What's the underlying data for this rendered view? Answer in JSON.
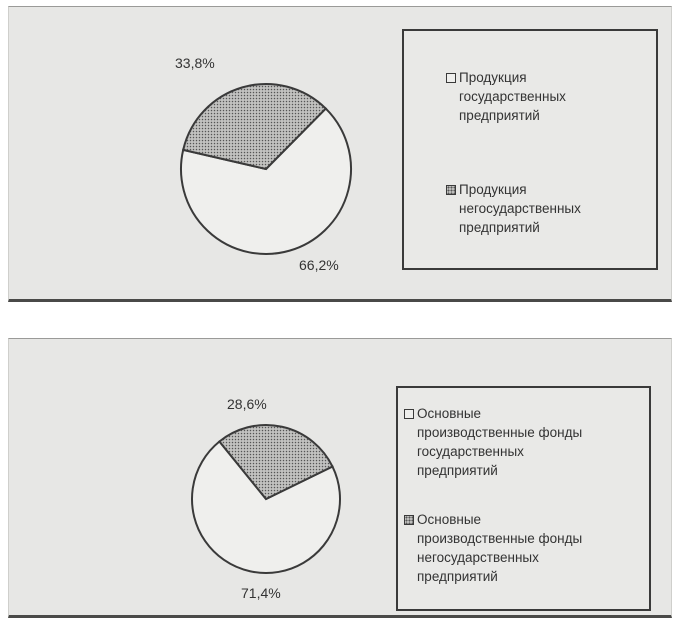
{
  "chart_data": [
    {
      "type": "pie",
      "slices": [
        {
          "label": "Продукция государственных предприятий",
          "value": 66.2,
          "value_label": "66,2%"
        },
        {
          "label": "Продукция негосударственных предприятий",
          "value": 33.8,
          "value_label": "33,8%"
        }
      ],
      "legend": {
        "placement": "right",
        "items": [
          {
            "text": "Продукция\nгосударственных\nпредприятий",
            "pattern": "light"
          },
          {
            "text": "Продукция\nнегосударственных\nпредприятий",
            "pattern": "dotted"
          }
        ]
      },
      "colors": {
        "state": "#efefed",
        "nonstate": "#bdbdbb",
        "outline": "#3a3a3a"
      }
    },
    {
      "type": "pie",
      "slices": [
        {
          "label": "Основные производственные фонды государственных предприятий",
          "value": 71.4,
          "value_label": "71,4%"
        },
        {
          "label": "Основные производственные фонды негосударственных предприятий",
          "value": 28.6,
          "value_label": "28,6%"
        }
      ],
      "legend": {
        "placement": "right",
        "items": [
          {
            "text": "Основные\nпроизводственные фонды\nгосударственных\nпредприятий",
            "pattern": "light"
          },
          {
            "text": "Основные\nпроизводственные фонды\nнегосударственных\nпредприятий",
            "pattern": "dotted"
          }
        ]
      },
      "colors": {
        "state": "#efefed",
        "nonstate": "#bdbdbb",
        "outline": "#3a3a3a"
      }
    }
  ]
}
